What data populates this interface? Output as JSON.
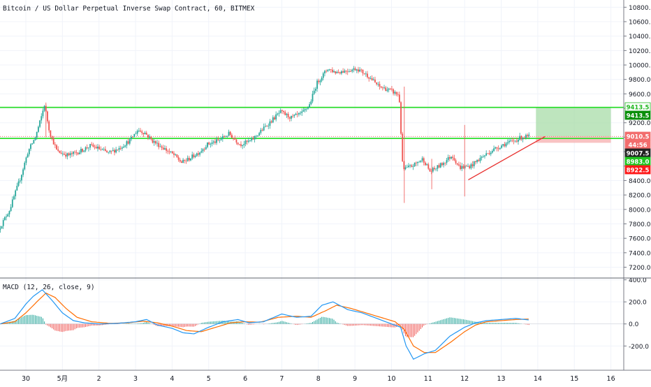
{
  "chart_data": {
    "type": "candlestick",
    "title": "Bitcoin / US Dollar Perpetual Inverse Swap Contract, 60, BITMEX",
    "x_ticks": [
      {
        "t": 0,
        "label": "30"
      },
      {
        "t": 1,
        "label": "5月"
      },
      {
        "t": 2,
        "label": "2"
      },
      {
        "t": 3,
        "label": "3"
      },
      {
        "t": 4,
        "label": "4"
      },
      {
        "t": 5,
        "label": "5"
      },
      {
        "t": 6,
        "label": "6"
      },
      {
        "t": 7,
        "label": "7"
      },
      {
        "t": 8,
        "label": "8"
      },
      {
        "t": 9,
        "label": "9"
      },
      {
        "t": 10,
        "label": "10"
      },
      {
        "t": 11,
        "label": "11"
      },
      {
        "t": 12,
        "label": "12"
      },
      {
        "t": 13,
        "label": "13"
      },
      {
        "t": 14,
        "label": "14"
      },
      {
        "t": 15,
        "label": "15"
      },
      {
        "t": 16,
        "label": "16"
      }
    ],
    "price_axis": {
      "ylim": [
        7050,
        10900
      ],
      "ticks": [
        "10800.0",
        "10600.0",
        "10400.0",
        "10200.0",
        "10000.0",
        "9800.0",
        "9600.0",
        "9400.0",
        "9200.0",
        "9000.0",
        "8800.0",
        "8600.0",
        "8400.0",
        "8200.0",
        "8000.0",
        "7800.0",
        "7600.0",
        "7400.0",
        "7200.0"
      ],
      "tick_values": [
        10800,
        10600,
        10400,
        10200,
        10000,
        9800,
        9600,
        9400,
        9200,
        9000,
        8800,
        8600,
        8400,
        8200,
        8000,
        7800,
        7600,
        7400,
        7200
      ]
    },
    "price_path": [
      [
        -0.7,
        7720
      ],
      [
        -0.4,
        8000
      ],
      [
        -0.1,
        8450
      ],
      [
        0.1,
        8800
      ],
      [
        0.3,
        9000
      ],
      [
        0.45,
        9250
      ],
      [
        0.55,
        9450
      ],
      [
        0.7,
        9050
      ],
      [
        0.9,
        8800
      ],
      [
        1.2,
        8750
      ],
      [
        1.5,
        8800
      ],
      [
        1.8,
        8880
      ],
      [
        2.0,
        8850
      ],
      [
        2.3,
        8780
      ],
      [
        2.6,
        8850
      ],
      [
        2.9,
        8960
      ],
      [
        3.1,
        9100
      ],
      [
        3.3,
        9060
      ],
      [
        3.5,
        8950
      ],
      [
        3.8,
        8850
      ],
      [
        4.1,
        8750
      ],
      [
        4.3,
        8650
      ],
      [
        4.5,
        8700
      ],
      [
        4.8,
        8800
      ],
      [
        5.0,
        8900
      ],
      [
        5.3,
        8950
      ],
      [
        5.6,
        9050
      ],
      [
        5.9,
        8900
      ],
      [
        6.2,
        8950
      ],
      [
        6.5,
        9100
      ],
      [
        6.8,
        9250
      ],
      [
        7.0,
        9350
      ],
      [
        7.3,
        9270
      ],
      [
        7.6,
        9330
      ],
      [
        7.8,
        9450
      ],
      [
        8.0,
        9750
      ],
      [
        8.3,
        9950
      ],
      [
        8.5,
        9900
      ],
      [
        8.8,
        9920
      ],
      [
        9.1,
        9950
      ],
      [
        9.4,
        9850
      ],
      [
        9.7,
        9700
      ],
      [
        10.0,
        9650
      ],
      [
        10.25,
        9580
      ],
      [
        10.35,
        8550
      ],
      [
        10.6,
        8600
      ],
      [
        10.9,
        8700
      ],
      [
        11.1,
        8520
      ],
      [
        11.4,
        8620
      ],
      [
        11.7,
        8750
      ],
      [
        11.9,
        8580
      ],
      [
        12.2,
        8600
      ],
      [
        12.5,
        8720
      ],
      [
        12.8,
        8820
      ],
      [
        13.1,
        8900
      ],
      [
        13.4,
        8950
      ],
      [
        13.6,
        9000
      ],
      [
        13.78,
        9010
      ]
    ],
    "current_price": 9010.5,
    "price_labels": [
      {
        "value": 9413.5,
        "text": "9413.5",
        "bg": "#ffffff",
        "fg": "#21b821",
        "border": "#21b821"
      },
      {
        "value": 9413.5,
        "text": "9413.5",
        "bg": "#0a8f0a",
        "fg": "#ffffff",
        "border": "#0a8f0a"
      },
      {
        "value": 9010.5,
        "text": "9010.5",
        "bg": "#f26d6d",
        "fg": "#ffffff",
        "border": "#f26d6d"
      },
      {
        "value": 8950,
        "text": "44:56",
        "bg": "#f26d6d",
        "fg": "#ffffff",
        "border": "#f26d6d"
      },
      {
        "value": 9007.5,
        "text": "9007.5",
        "bg": "#222222",
        "fg": "#ffffff",
        "border": "#222222"
      },
      {
        "value": 8983.0,
        "text": "8983.0",
        "bg": "#21c621",
        "fg": "#ffffff",
        "border": "#21c621"
      },
      {
        "value": 8922.5,
        "text": "8922.5",
        "bg": "#ff1a1a",
        "fg": "#ffffff",
        "border": "#ff1a1a"
      }
    ],
    "horizontal_levels": [
      {
        "value": 9413.5,
        "color": "#22dd22"
      },
      {
        "value": 8983.0,
        "color": "#22dd22"
      }
    ],
    "trendline": {
      "from": [
        12.1,
        8410
      ],
      "to": [
        14.2,
        9010
      ],
      "color": "#e8302e"
    },
    "long_position": {
      "t_start": 13.95,
      "t_end": 16.0,
      "entry": 9010.5,
      "target": 9413.5,
      "stop": 8922.5,
      "profit_color": "#a8dca8",
      "loss_color": "#f6b4b4"
    },
    "macd": {
      "title": "MACD (12, 26, close, 9)",
      "ylim": [
        -420,
        410
      ],
      "ticks": [
        "400.0",
        "200.0",
        "0.0",
        "-200.0"
      ],
      "tick_values": [
        400,
        200,
        0,
        -200
      ],
      "macd_path": [
        [
          -0.7,
          0
        ],
        [
          -0.3,
          50
        ],
        [
          0.0,
          180
        ],
        [
          0.2,
          250
        ],
        [
          0.45,
          310
        ],
        [
          0.7,
          220
        ],
        [
          1.0,
          100
        ],
        [
          1.3,
          30
        ],
        [
          1.6,
          10
        ],
        [
          2.0,
          0
        ],
        [
          2.5,
          5
        ],
        [
          3.0,
          20
        ],
        [
          3.3,
          40
        ],
        [
          3.6,
          -10
        ],
        [
          4.0,
          -40
        ],
        [
          4.3,
          -80
        ],
        [
          4.6,
          -90
        ],
        [
          5.0,
          -30
        ],
        [
          5.4,
          20
        ],
        [
          5.8,
          40
        ],
        [
          6.1,
          10
        ],
        [
          6.5,
          20
        ],
        [
          7.0,
          90
        ],
        [
          7.4,
          60
        ],
        [
          7.8,
          70
        ],
        [
          8.1,
          170
        ],
        [
          8.4,
          200
        ],
        [
          8.8,
          130
        ],
        [
          9.2,
          100
        ],
        [
          9.6,
          50
        ],
        [
          10.0,
          0
        ],
        [
          10.25,
          -30
        ],
        [
          10.4,
          -200
        ],
        [
          10.6,
          -320
        ],
        [
          10.9,
          -270
        ],
        [
          11.2,
          -240
        ],
        [
          11.6,
          -110
        ],
        [
          12.0,
          -30
        ],
        [
          12.3,
          10
        ],
        [
          12.6,
          30
        ],
        [
          13.0,
          40
        ],
        [
          13.4,
          50
        ],
        [
          13.78,
          35
        ]
      ],
      "signal_path": [
        [
          -0.7,
          0
        ],
        [
          -0.3,
          20
        ],
        [
          0.0,
          100
        ],
        [
          0.3,
          200
        ],
        [
          0.55,
          280
        ],
        [
          0.8,
          240
        ],
        [
          1.1,
          140
        ],
        [
          1.4,
          60
        ],
        [
          1.8,
          20
        ],
        [
          2.3,
          5
        ],
        [
          2.8,
          10
        ],
        [
          3.2,
          25
        ],
        [
          3.6,
          10
        ],
        [
          4.0,
          -20
        ],
        [
          4.4,
          -60
        ],
        [
          4.8,
          -70
        ],
        [
          5.2,
          -30
        ],
        [
          5.6,
          10
        ],
        [
          6.0,
          20
        ],
        [
          6.4,
          15
        ],
        [
          6.9,
          60
        ],
        [
          7.4,
          70
        ],
        [
          7.8,
          60
        ],
        [
          8.2,
          120
        ],
        [
          8.5,
          170
        ],
        [
          8.9,
          140
        ],
        [
          9.3,
          100
        ],
        [
          9.7,
          60
        ],
        [
          10.1,
          20
        ],
        [
          10.35,
          -50
        ],
        [
          10.6,
          -200
        ],
        [
          10.9,
          -260
        ],
        [
          11.2,
          -260
        ],
        [
          11.6,
          -170
        ],
        [
          12.0,
          -70
        ],
        [
          12.3,
          -10
        ],
        [
          12.6,
          20
        ],
        [
          13.0,
          30
        ],
        [
          13.4,
          40
        ],
        [
          13.78,
          45
        ]
      ],
      "hist_pos_color": "#26a69a",
      "hist_neg_color": "#ef5350",
      "macd_color": "#2196f3",
      "signal_color": "#ff6d00"
    }
  }
}
